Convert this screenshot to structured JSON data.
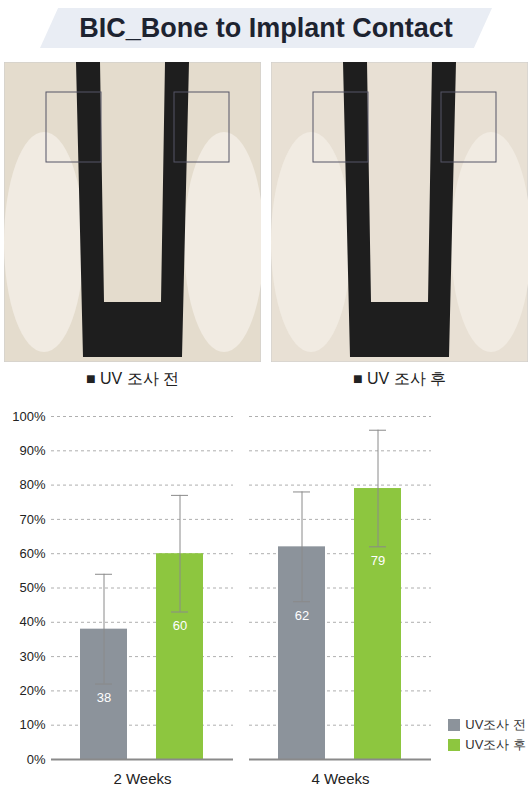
{
  "header": {
    "title": "BIC_Bone to Implant Contact"
  },
  "panels": [
    {
      "caption": "■ UV 조사 전"
    },
    {
      "caption": "■ UV 조사 후"
    }
  ],
  "chart_data": {
    "type": "bar",
    "categories": [
      "2 Weeks",
      "4 Weeks"
    ],
    "series": [
      {
        "name": "UV조사 전",
        "color": "#8c939b",
        "values": [
          38,
          62
        ],
        "errors": [
          16,
          16
        ]
      },
      {
        "name": "UV조사 후",
        "color": "#8dc63f",
        "values": [
          60,
          79
        ],
        "errors": [
          17,
          17
        ]
      }
    ],
    "ylim": [
      0,
      100
    ],
    "yticks": [
      {
        "value": 0,
        "label": "0%"
      },
      {
        "value": 10,
        "label": "10%"
      },
      {
        "value": 20,
        "label": "20%"
      },
      {
        "value": 30,
        "label": "30%"
      },
      {
        "value": 40,
        "label": "40%"
      },
      {
        "value": 50,
        "label": "50%"
      },
      {
        "value": 60,
        "label": "60%"
      },
      {
        "value": 70,
        "label": "70%"
      },
      {
        "value": 80,
        "label": "80%"
      },
      {
        "value": 90,
        "label": "90%"
      },
      {
        "value": 100,
        "label": "100%"
      }
    ],
    "grid": true,
    "data_labels": true,
    "legend": "bottom-right"
  }
}
